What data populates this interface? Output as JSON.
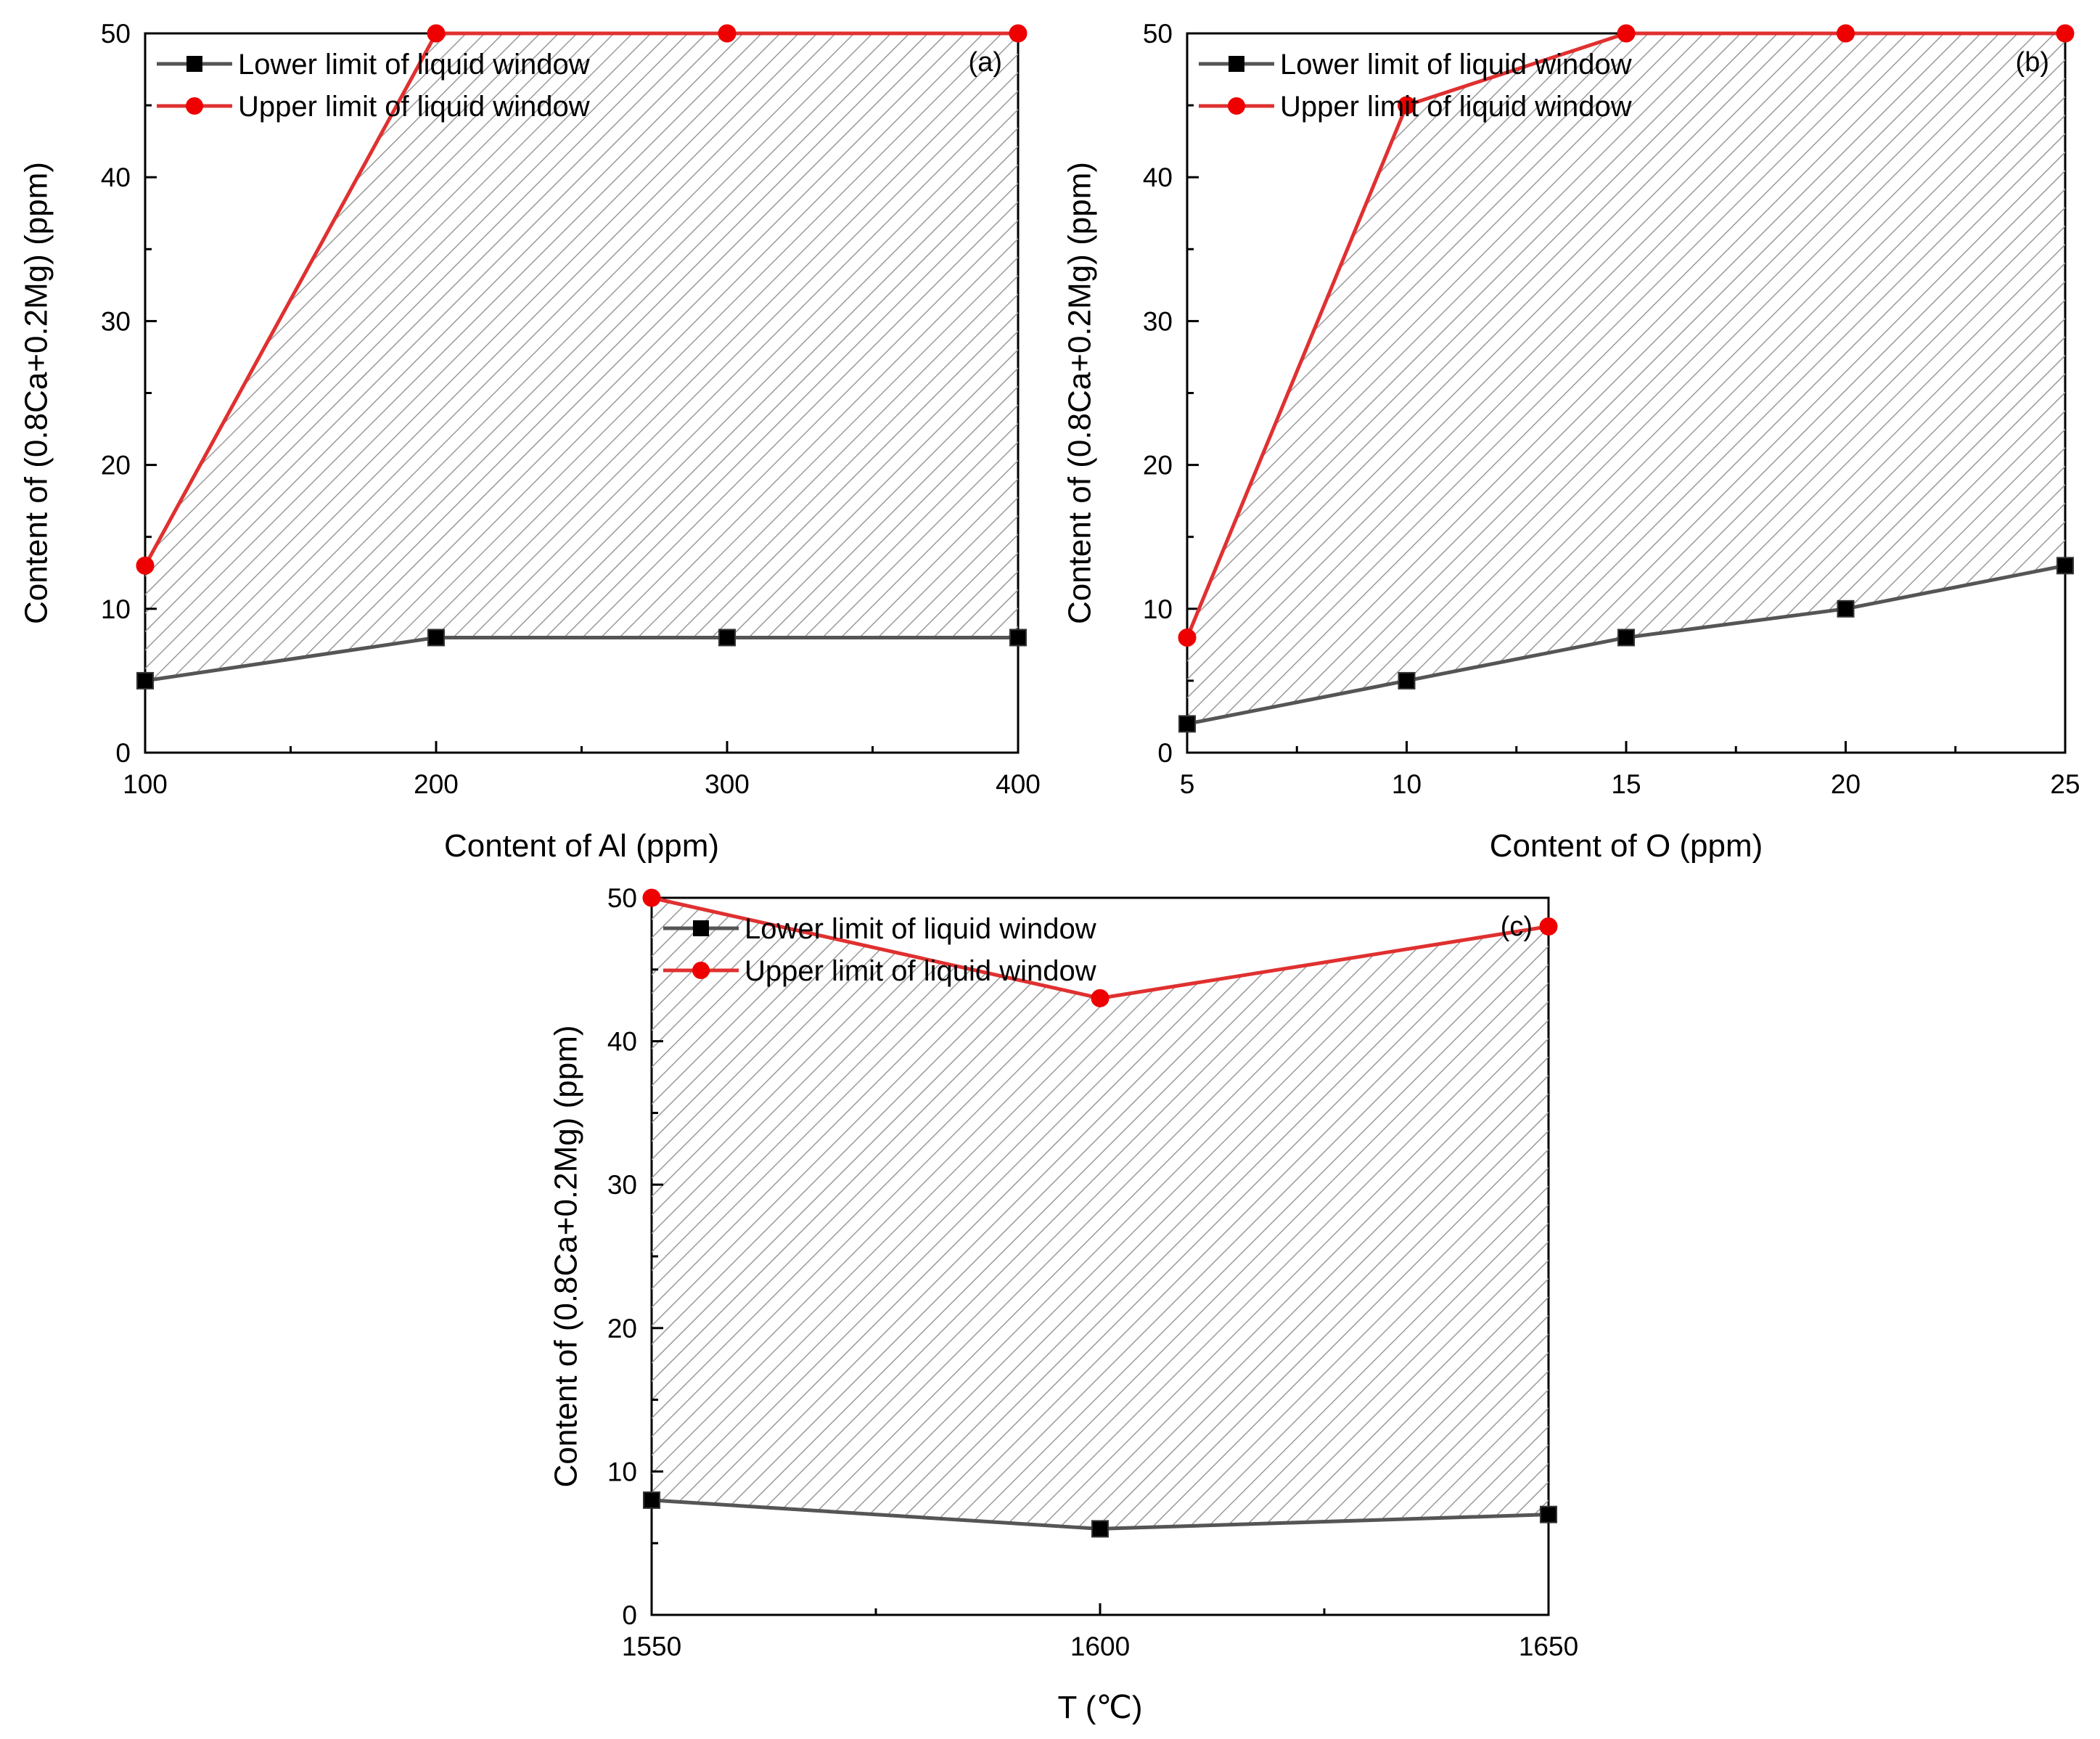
{
  "colors": {
    "lower": "#555555",
    "lower_marker": "#000000",
    "upper": "#e03030",
    "upper_marker": "#ee0000",
    "hatch": "#9a9a9a",
    "axis": "#000000"
  },
  "chart_data": [
    {
      "type": "line",
      "panel_label": "(a)",
      "xlabel": "Content of Al (ppm)",
      "ylabel": "Content of  (0.8Ca+0.2Mg)  (ppm)",
      "xlim": [
        100,
        400
      ],
      "ylim": [
        0,
        50
      ],
      "xticks": [
        100,
        200,
        300,
        400
      ],
      "xtick_labels": [
        "100",
        "200",
        "300",
        "400"
      ],
      "xminor": [
        150,
        250,
        350
      ],
      "yticks": [
        0,
        10,
        20,
        30,
        40,
        50
      ],
      "ytick_labels": [
        "0",
        "10",
        "20",
        "30",
        "40",
        "50"
      ],
      "yminor": [
        5,
        15,
        25,
        35,
        45
      ],
      "legend_position": "top-left",
      "x": [
        100,
        200,
        300,
        400
      ],
      "series": [
        {
          "name": "Lower limit of liquid window",
          "marker": "square",
          "values": [
            5,
            8,
            8,
            8
          ]
        },
        {
          "name": "Upper limit of liquid window",
          "marker": "circle",
          "values": [
            13,
            50,
            50,
            50
          ]
        }
      ],
      "shaded_region": "between lower and upper limits"
    },
    {
      "type": "line",
      "panel_label": "(b)",
      "xlabel": "Content of O (ppm)",
      "ylabel": "Content of (0.8Ca+0.2Mg) (ppm)",
      "xlim": [
        5,
        25
      ],
      "ylim": [
        0,
        50
      ],
      "xticks": [
        5,
        10,
        15,
        20,
        25
      ],
      "xtick_labels": [
        "5",
        "10",
        "15",
        "20",
        "25"
      ],
      "xminor": [
        7.5,
        12.5,
        17.5,
        22.5
      ],
      "yticks": [
        0,
        10,
        20,
        30,
        40,
        50
      ],
      "ytick_labels": [
        "0",
        "10",
        "20",
        "30",
        "40",
        "50"
      ],
      "yminor": [
        5,
        15,
        25,
        35,
        45
      ],
      "legend_position": "top-left",
      "x": [
        5,
        10,
        15,
        20,
        25
      ],
      "series": [
        {
          "name": "Lower limit of liquid window",
          "marker": "square",
          "values": [
            2,
            5,
            8,
            10,
            13
          ]
        },
        {
          "name": "Upper limit of liquid window",
          "marker": "circle",
          "values": [
            8,
            45,
            50,
            50,
            50
          ]
        }
      ],
      "shaded_region": "between lower and upper limits"
    },
    {
      "type": "line",
      "panel_label": "(c)",
      "xlabel": "T (℃)",
      "ylabel": "Content of (0.8Ca+0.2Mg) (ppm)",
      "xlim": [
        1550,
        1650
      ],
      "ylim": [
        0,
        50
      ],
      "xticks": [
        1550,
        1600,
        1650
      ],
      "xtick_labels": [
        "1550",
        "1600",
        "1650"
      ],
      "xminor": [
        1575,
        1625
      ],
      "yticks": [
        0,
        10,
        20,
        30,
        40,
        50
      ],
      "ytick_labels": [
        "0",
        "10",
        "20",
        "30",
        "40",
        "50"
      ],
      "yminor": [
        5,
        15,
        25,
        35,
        45
      ],
      "legend_position": "top-left",
      "x": [
        1550,
        1600,
        1650
      ],
      "series": [
        {
          "name": "Lower limit of liquid window",
          "marker": "square",
          "values": [
            8,
            6,
            7
          ]
        },
        {
          "name": "Upper limit of liquid window",
          "marker": "circle",
          "values": [
            50,
            43,
            48
          ]
        }
      ],
      "shaded_region": "between lower and upper limits"
    }
  ]
}
